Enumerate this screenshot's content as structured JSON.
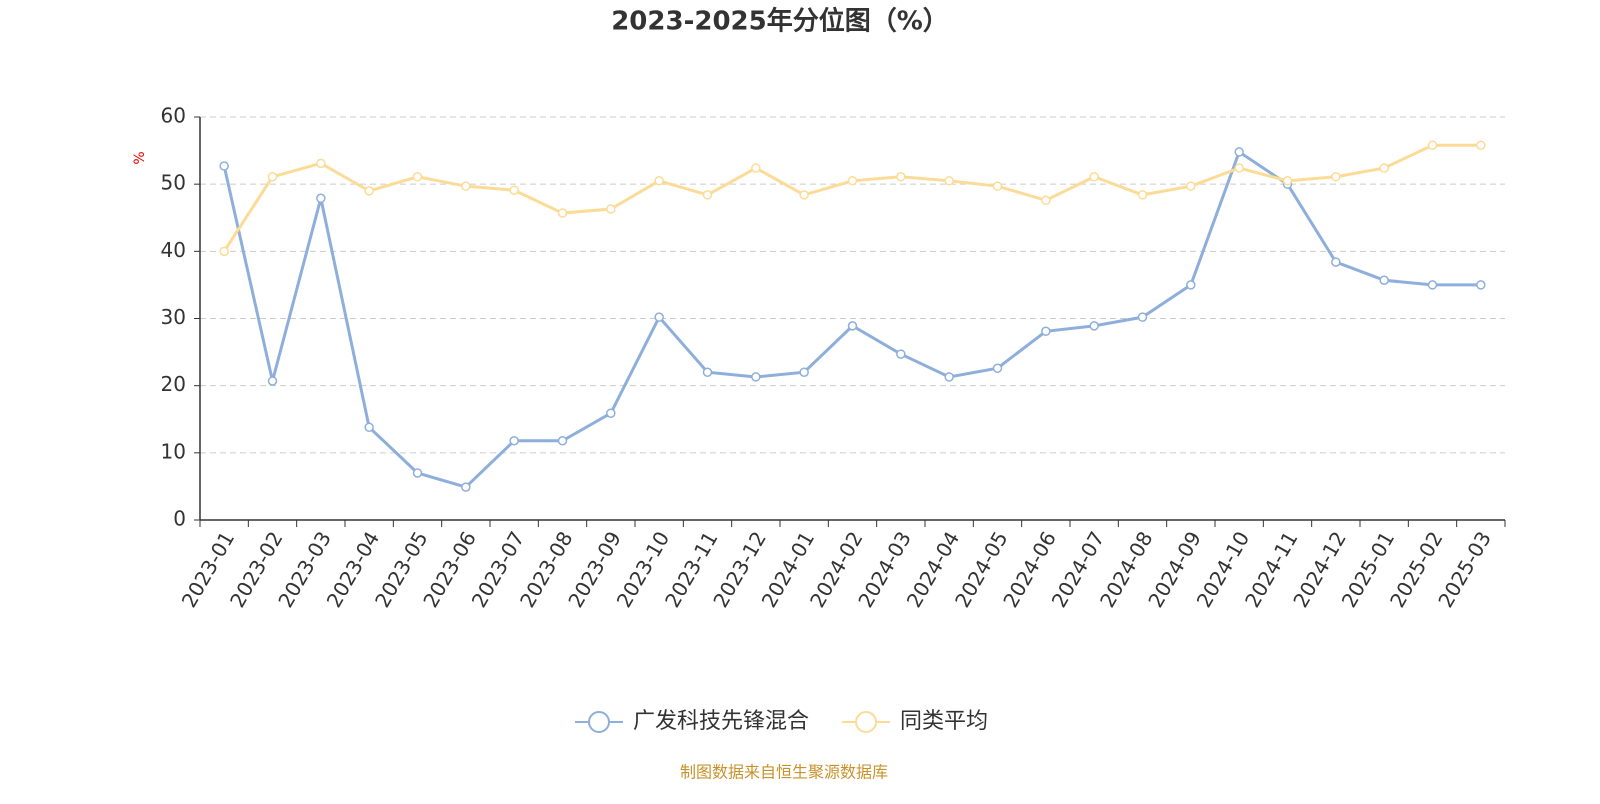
{
  "chart_data": {
    "type": "line",
    "title": "2023-2025年分位图（%）",
    "y_label": "%",
    "categories": [
      "2023-01",
      "2023-02",
      "2023-03",
      "2023-04",
      "2023-05",
      "2023-06",
      "2023-07",
      "2023-08",
      "2023-09",
      "2023-10",
      "2023-11",
      "2023-12",
      "2024-01",
      "2024-02",
      "2024-03",
      "2024-04",
      "2024-05",
      "2024-06",
      "2024-07",
      "2024-08",
      "2024-09",
      "2024-10",
      "2024-11",
      "2024-12",
      "2025-01",
      "2025-02",
      "2025-03"
    ],
    "series": [
      {
        "name": "广发科技先锋混合",
        "color": "#8eaedb",
        "values": [
          52.7,
          20.7,
          47.9,
          13.8,
          7.0,
          4.9,
          11.8,
          11.8,
          15.9,
          30.2,
          22.0,
          21.3,
          22.0,
          28.9,
          24.7,
          21.3,
          22.6,
          28.1,
          28.9,
          30.2,
          35.0,
          54.8,
          50.0,
          38.4,
          35.7,
          35.0,
          35.0
        ]
      },
      {
        "name": "同类平均",
        "color": "#fcdb97",
        "values": [
          40.0,
          51.1,
          53.1,
          49.0,
          51.1,
          49.7,
          49.1,
          45.7,
          46.3,
          50.5,
          48.4,
          52.4,
          48.4,
          50.5,
          51.1,
          50.5,
          49.7,
          47.6,
          51.1,
          48.4,
          49.7,
          52.4,
          50.5,
          51.1,
          52.4,
          55.8,
          55.8
        ]
      }
    ],
    "ylim": [
      0,
      60
    ],
    "yticks": [
      0,
      10,
      20,
      30,
      40,
      50,
      60
    ],
    "grid": true,
    "legend": "bottom",
    "footer": "制图数据来自恒生聚源数据库"
  }
}
